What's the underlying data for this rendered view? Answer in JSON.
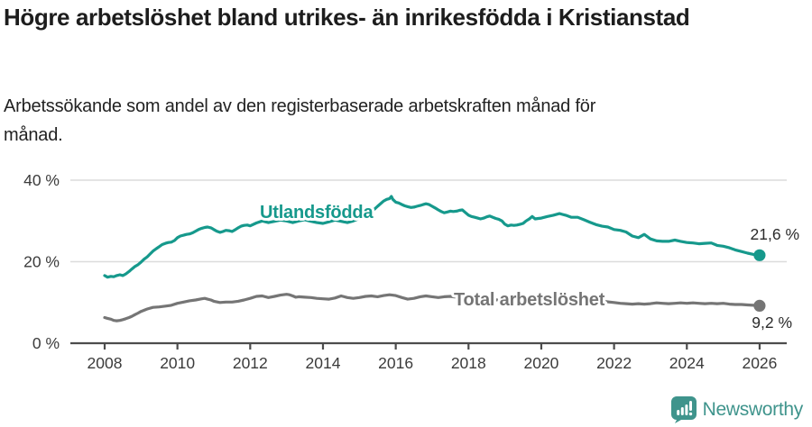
{
  "header": {
    "title": "Högre arbetslöshet bland utrikes- än inrikesfödda i Kristianstad",
    "subtitle": "Arbetssökande som andel av den registerbaserade arbetskraften månad för månad."
  },
  "footer": {
    "brand": "Newsworthy",
    "brand_color": "#3f948c"
  },
  "colors": {
    "accent_teal": "#16998c",
    "series_gray": "#757575",
    "grid": "#dcdcdc",
    "axis": "#4c4c4c"
  },
  "chart_data": {
    "type": "line",
    "title": "Högre arbetslöshet bland utrikes- än inrikesfödda i Kristianstad",
    "subtitle": "Arbetssökande som andel av den registerbaserade arbetskraften månad för månad.",
    "grid": true,
    "legend_position": "inline-labels",
    "x_axis": {
      "ticks": [
        2008,
        2010,
        2012,
        2014,
        2016,
        2018,
        2020,
        2022,
        2024,
        2026
      ]
    },
    "y_axis": {
      "tick_values": [
        0,
        20,
        40
      ],
      "tick_labels": [
        "0 %",
        "20 %",
        "40 %"
      ],
      "range": [
        0,
        43
      ]
    },
    "series": [
      {
        "name": "Utlandsfödda",
        "color": "#16998c",
        "end_label": "21,6 %",
        "end_value": 21.6,
        "points": [
          [
            2008.0,
            16.6
          ],
          [
            2008.08,
            16.2
          ],
          [
            2008.17,
            16.4
          ],
          [
            2008.25,
            16.3
          ],
          [
            2008.33,
            16.6
          ],
          [
            2008.42,
            16.8
          ],
          [
            2008.5,
            16.6
          ],
          [
            2008.58,
            17.0
          ],
          [
            2008.67,
            17.6
          ],
          [
            2008.75,
            18.2
          ],
          [
            2008.83,
            18.8
          ],
          [
            2008.92,
            19.3
          ],
          [
            2009.0,
            19.9
          ],
          [
            2009.08,
            20.6
          ],
          [
            2009.17,
            21.2
          ],
          [
            2009.25,
            21.9
          ],
          [
            2009.33,
            22.6
          ],
          [
            2009.42,
            23.2
          ],
          [
            2009.5,
            23.7
          ],
          [
            2009.58,
            24.2
          ],
          [
            2009.67,
            24.5
          ],
          [
            2009.75,
            24.7
          ],
          [
            2009.83,
            24.8
          ],
          [
            2009.92,
            25.2
          ],
          [
            2010.0,
            25.9
          ],
          [
            2010.08,
            26.3
          ],
          [
            2010.17,
            26.5
          ],
          [
            2010.25,
            26.7
          ],
          [
            2010.33,
            26.8
          ],
          [
            2010.42,
            27.1
          ],
          [
            2010.5,
            27.5
          ],
          [
            2010.58,
            27.9
          ],
          [
            2010.67,
            28.2
          ],
          [
            2010.75,
            28.4
          ],
          [
            2010.83,
            28.5
          ],
          [
            2010.92,
            28.3
          ],
          [
            2011.0,
            27.9
          ],
          [
            2011.08,
            27.5
          ],
          [
            2011.17,
            27.2
          ],
          [
            2011.25,
            27.4
          ],
          [
            2011.33,
            27.7
          ],
          [
            2011.42,
            27.6
          ],
          [
            2011.5,
            27.4
          ],
          [
            2011.58,
            27.8
          ],
          [
            2011.67,
            28.3
          ],
          [
            2011.75,
            28.7
          ],
          [
            2011.83,
            28.9
          ],
          [
            2011.92,
            29.0
          ],
          [
            2012.0,
            28.8
          ],
          [
            2012.17,
            29.5
          ],
          [
            2012.33,
            30.0
          ],
          [
            2012.5,
            29.6
          ],
          [
            2012.67,
            29.9
          ],
          [
            2012.83,
            30.2
          ],
          [
            2013.0,
            30.0
          ],
          [
            2013.17,
            29.6
          ],
          [
            2013.33,
            30.0
          ],
          [
            2013.5,
            30.3
          ],
          [
            2013.67,
            29.9
          ],
          [
            2013.83,
            29.6
          ],
          [
            2014.0,
            29.4
          ],
          [
            2014.17,
            29.8
          ],
          [
            2014.33,
            30.2
          ],
          [
            2014.5,
            29.9
          ],
          [
            2014.67,
            29.6
          ],
          [
            2014.83,
            30.0
          ],
          [
            2015.0,
            30.6
          ],
          [
            2015.17,
            31.3
          ],
          [
            2015.33,
            32.2
          ],
          [
            2015.5,
            33.6
          ],
          [
            2015.67,
            34.9
          ],
          [
            2015.75,
            35.3
          ],
          [
            2015.83,
            35.5
          ],
          [
            2015.88,
            36.0
          ],
          [
            2015.92,
            35.3
          ],
          [
            2016.0,
            34.6
          ],
          [
            2016.08,
            34.4
          ],
          [
            2016.17,
            34.0
          ],
          [
            2016.25,
            33.7
          ],
          [
            2016.33,
            33.5
          ],
          [
            2016.42,
            33.3
          ],
          [
            2016.5,
            33.4
          ],
          [
            2016.58,
            33.6
          ],
          [
            2016.67,
            33.8
          ],
          [
            2016.75,
            34.0
          ],
          [
            2016.83,
            34.2
          ],
          [
            2016.92,
            34.0
          ],
          [
            2017.0,
            33.6
          ],
          [
            2017.08,
            33.2
          ],
          [
            2017.17,
            32.7
          ],
          [
            2017.25,
            32.3
          ],
          [
            2017.33,
            32.0
          ],
          [
            2017.42,
            32.2
          ],
          [
            2017.5,
            32.4
          ],
          [
            2017.58,
            32.3
          ],
          [
            2017.67,
            32.4
          ],
          [
            2017.75,
            32.6
          ],
          [
            2017.83,
            32.7
          ],
          [
            2017.92,
            32.0
          ],
          [
            2018.0,
            31.4
          ],
          [
            2018.08,
            31.1
          ],
          [
            2018.17,
            30.9
          ],
          [
            2018.25,
            30.7
          ],
          [
            2018.33,
            30.5
          ],
          [
            2018.42,
            30.7
          ],
          [
            2018.5,
            31.0
          ],
          [
            2018.58,
            31.2
          ],
          [
            2018.67,
            30.9
          ],
          [
            2018.75,
            30.6
          ],
          [
            2018.83,
            30.4
          ],
          [
            2018.92,
            30.0
          ],
          [
            2019.0,
            29.2
          ],
          [
            2019.08,
            28.8
          ],
          [
            2019.17,
            29.0
          ],
          [
            2019.25,
            28.9
          ],
          [
            2019.33,
            29.0
          ],
          [
            2019.42,
            29.2
          ],
          [
            2019.5,
            29.4
          ],
          [
            2019.58,
            30.0
          ],
          [
            2019.67,
            30.5
          ],
          [
            2019.75,
            31.1
          ],
          [
            2019.83,
            30.5
          ],
          [
            2019.92,
            30.6
          ],
          [
            2020.0,
            30.7
          ],
          [
            2020.17,
            31.1
          ],
          [
            2020.33,
            31.4
          ],
          [
            2020.5,
            31.8
          ],
          [
            2020.58,
            31.6
          ],
          [
            2020.67,
            31.4
          ],
          [
            2020.83,
            30.9
          ],
          [
            2021.0,
            30.9
          ],
          [
            2021.17,
            30.3
          ],
          [
            2021.33,
            29.7
          ],
          [
            2021.5,
            29.1
          ],
          [
            2021.67,
            28.7
          ],
          [
            2021.83,
            28.5
          ],
          [
            2022.0,
            27.9
          ],
          [
            2022.17,
            27.7
          ],
          [
            2022.33,
            27.3
          ],
          [
            2022.5,
            26.3
          ],
          [
            2022.67,
            25.9
          ],
          [
            2022.83,
            26.7
          ],
          [
            2023.0,
            25.6
          ],
          [
            2023.17,
            25.1
          ],
          [
            2023.33,
            25.0
          ],
          [
            2023.5,
            25.0
          ],
          [
            2023.67,
            25.3
          ],
          [
            2023.83,
            25.0
          ],
          [
            2024.0,
            24.7
          ],
          [
            2024.17,
            24.6
          ],
          [
            2024.33,
            24.4
          ],
          [
            2024.5,
            24.5
          ],
          [
            2024.67,
            24.6
          ],
          [
            2024.83,
            24.0
          ],
          [
            2025.0,
            23.8
          ],
          [
            2025.17,
            23.4
          ],
          [
            2025.33,
            22.9
          ],
          [
            2025.5,
            22.5
          ],
          [
            2025.67,
            22.1
          ],
          [
            2025.83,
            21.8
          ],
          [
            2026.0,
            21.6
          ]
        ]
      },
      {
        "name": "Total arbetslöshet",
        "color": "#757575",
        "end_label": "9,2 %",
        "end_value": 9.2,
        "points": [
          [
            2008.0,
            6.3
          ],
          [
            2008.08,
            6.1
          ],
          [
            2008.17,
            5.9
          ],
          [
            2008.25,
            5.6
          ],
          [
            2008.33,
            5.5
          ],
          [
            2008.42,
            5.6
          ],
          [
            2008.5,
            5.8
          ],
          [
            2008.58,
            6.0
          ],
          [
            2008.67,
            6.3
          ],
          [
            2008.75,
            6.6
          ],
          [
            2008.83,
            7.0
          ],
          [
            2008.92,
            7.4
          ],
          [
            2009.0,
            7.8
          ],
          [
            2009.17,
            8.4
          ],
          [
            2009.33,
            8.8
          ],
          [
            2009.5,
            8.9
          ],
          [
            2009.67,
            9.1
          ],
          [
            2009.83,
            9.3
          ],
          [
            2010.0,
            9.8
          ],
          [
            2010.17,
            10.1
          ],
          [
            2010.33,
            10.4
          ],
          [
            2010.5,
            10.6
          ],
          [
            2010.67,
            10.9
          ],
          [
            2010.75,
            11.0
          ],
          [
            2010.83,
            10.8
          ],
          [
            2010.92,
            10.6
          ],
          [
            2011.0,
            10.3
          ],
          [
            2011.17,
            10.0
          ],
          [
            2011.33,
            10.1
          ],
          [
            2011.5,
            10.1
          ],
          [
            2011.67,
            10.3
          ],
          [
            2011.83,
            10.6
          ],
          [
            2012.0,
            11.0
          ],
          [
            2012.17,
            11.5
          ],
          [
            2012.33,
            11.6
          ],
          [
            2012.5,
            11.2
          ],
          [
            2012.67,
            11.5
          ],
          [
            2012.83,
            11.8
          ],
          [
            2013.0,
            12.0
          ],
          [
            2013.08,
            11.9
          ],
          [
            2013.17,
            11.6
          ],
          [
            2013.25,
            11.3
          ],
          [
            2013.33,
            11.4
          ],
          [
            2013.5,
            11.3
          ],
          [
            2013.67,
            11.2
          ],
          [
            2013.83,
            11.0
          ],
          [
            2014.0,
            10.9
          ],
          [
            2014.17,
            10.8
          ],
          [
            2014.33,
            11.1
          ],
          [
            2014.5,
            11.6
          ],
          [
            2014.67,
            11.2
          ],
          [
            2014.83,
            11.0
          ],
          [
            2015.0,
            11.2
          ],
          [
            2015.17,
            11.5
          ],
          [
            2015.33,
            11.6
          ],
          [
            2015.5,
            11.4
          ],
          [
            2015.67,
            11.7
          ],
          [
            2015.83,
            11.9
          ],
          [
            2016.0,
            11.7
          ],
          [
            2016.17,
            11.2
          ],
          [
            2016.33,
            10.8
          ],
          [
            2016.5,
            11.0
          ],
          [
            2016.67,
            11.4
          ],
          [
            2016.83,
            11.6
          ],
          [
            2017.0,
            11.4
          ],
          [
            2017.17,
            11.2
          ],
          [
            2017.33,
            11.4
          ],
          [
            2017.5,
            11.5
          ],
          [
            2017.67,
            11.3
          ],
          [
            2017.83,
            11.2
          ],
          [
            2018.0,
            11.1
          ],
          [
            2018.33,
            10.8
          ],
          [
            2018.67,
            10.7
          ],
          [
            2019.0,
            10.5
          ],
          [
            2019.33,
            10.6
          ],
          [
            2019.67,
            10.8
          ],
          [
            2020.0,
            11.0
          ],
          [
            2020.33,
            11.5
          ],
          [
            2020.5,
            11.6
          ],
          [
            2020.67,
            11.4
          ],
          [
            2021.0,
            11.1
          ],
          [
            2021.33,
            10.7
          ],
          [
            2021.67,
            10.3
          ],
          [
            2022.0,
            10.0
          ],
          [
            2022.17,
            9.8
          ],
          [
            2022.33,
            9.7
          ],
          [
            2022.5,
            9.6
          ],
          [
            2022.67,
            9.7
          ],
          [
            2022.83,
            9.6
          ],
          [
            2023.0,
            9.7
          ],
          [
            2023.17,
            9.9
          ],
          [
            2023.33,
            9.8
          ],
          [
            2023.5,
            9.7
          ],
          [
            2023.67,
            9.8
          ],
          [
            2023.83,
            9.9
          ],
          [
            2024.0,
            9.8
          ],
          [
            2024.17,
            9.9
          ],
          [
            2024.33,
            9.8
          ],
          [
            2024.5,
            9.7
          ],
          [
            2024.67,
            9.8
          ],
          [
            2024.83,
            9.7
          ],
          [
            2025.0,
            9.8
          ],
          [
            2025.17,
            9.6
          ],
          [
            2025.33,
            9.5
          ],
          [
            2025.5,
            9.5
          ],
          [
            2025.67,
            9.4
          ],
          [
            2025.83,
            9.3
          ],
          [
            2026.0,
            9.2
          ]
        ]
      }
    ]
  }
}
